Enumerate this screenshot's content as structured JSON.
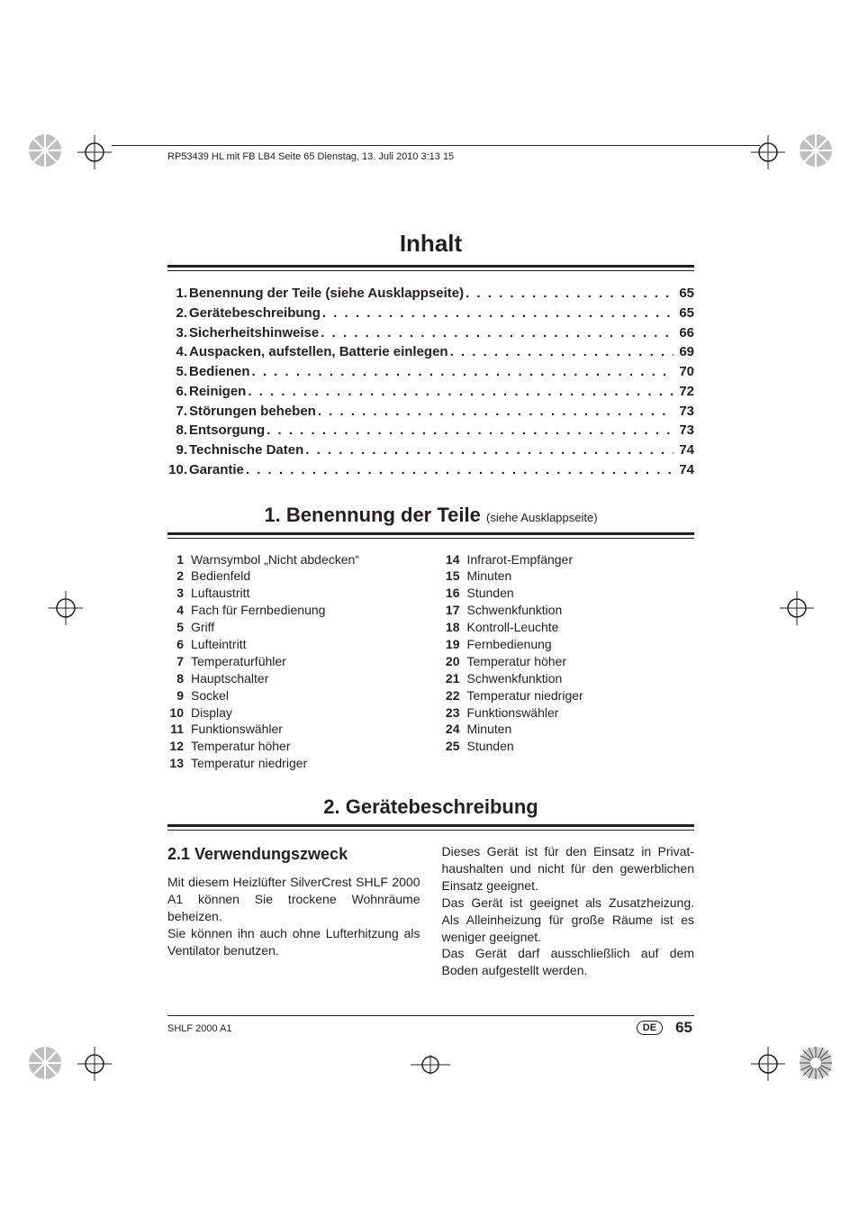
{
  "header_bar": "RP53439 HL mit FB LB4  Seite 65  Dienstag, 13. Juli 2010  3:13 15",
  "title": "Inhalt",
  "toc": [
    {
      "num": "1.",
      "label": "Benennung der Teile (siehe Ausklappseite)",
      "page": "65"
    },
    {
      "num": "2.",
      "label": "Gerätebeschreibung",
      "page": "65"
    },
    {
      "num": "3.",
      "label": "Sicherheitshinweise",
      "page": "66"
    },
    {
      "num": "4.",
      "label": "Auspacken, aufstellen, Batterie einlegen",
      "page": "69"
    },
    {
      "num": "5.",
      "label": "Bedienen",
      "page": "70"
    },
    {
      "num": "6.",
      "label": "Reinigen",
      "page": "72"
    },
    {
      "num": "7.",
      "label": "Störungen beheben",
      "page": "73"
    },
    {
      "num": "8.",
      "label": "Entsorgung",
      "page": "73"
    },
    {
      "num": "9.",
      "label": "Technische Daten",
      "page": "74"
    },
    {
      "num": "10.",
      "label": "Garantie",
      "page": "74"
    }
  ],
  "section1_title": "1. Benennung der Teile",
  "section1_sub": "(siehe Ausklappseite)",
  "parts_left": [
    {
      "n": "1",
      "t": "Warnsymbol „Nicht abdecken“"
    },
    {
      "n": "2",
      "t": "Bedienfeld"
    },
    {
      "n": "3",
      "t": "Luftaustritt"
    },
    {
      "n": "4",
      "t": "Fach für Fernbedienung"
    },
    {
      "n": "5",
      "t": "Griff"
    },
    {
      "n": "6",
      "t": "Lufteintritt"
    },
    {
      "n": "7",
      "t": "Temperaturfühler"
    },
    {
      "n": "8",
      "t": "Hauptschalter"
    },
    {
      "n": "9",
      "t": "Sockel"
    },
    {
      "n": "10",
      "t": "Display"
    },
    {
      "n": "11",
      "t": "Funktionswähler"
    },
    {
      "n": "12",
      "t": "Temperatur höher"
    },
    {
      "n": "13",
      "t": "Temperatur niedriger"
    }
  ],
  "parts_right": [
    {
      "n": "14",
      "t": "Infrarot-Empfänger"
    },
    {
      "n": "15",
      "t": "Minuten"
    },
    {
      "n": "16",
      "t": "Stunden"
    },
    {
      "n": "17",
      "t": "Schwenkfunktion"
    },
    {
      "n": "18",
      "t": "Kontroll-Leuchte"
    },
    {
      "n": "19",
      "t": "Fernbedienung"
    },
    {
      "n": "20",
      "t": "Temperatur höher"
    },
    {
      "n": "21",
      "t": "Schwenkfunktion"
    },
    {
      "n": "22",
      "t": "Temperatur niedriger"
    },
    {
      "n": "23",
      "t": "Funktionswähler"
    },
    {
      "n": "24",
      "t": "Minuten"
    },
    {
      "n": "25",
      "t": "Stunden"
    }
  ],
  "section2_title": "2. Gerätebeschreibung",
  "subhead_21": "2.1  Verwendungszweck",
  "body_left": "Mit diesem Heizlüfter SilverCrest SHLF 2000 A1 können Sie trockene Wohn­räume beheizen.\nSie können ihn auch ohne Lufterhitzung als Ventilator benutzen.",
  "body_right": "Dieses Gerät ist für den Einsatz in Privat­haushalten und nicht für den gewerblichen Einsatz geeignet.\nDas Gerät ist geeignet als Zusatzheizung. Als Alleinheizung für große Räume ist es weniger geeignet.\nDas Gerät darf ausschließlich auf dem Boden aufgestellt werden.",
  "footer_model": "SHLF 2000 A1",
  "footer_lang": "DE",
  "footer_page": "65",
  "colors": {
    "text": "#231f20",
    "bg": "#ffffff"
  }
}
